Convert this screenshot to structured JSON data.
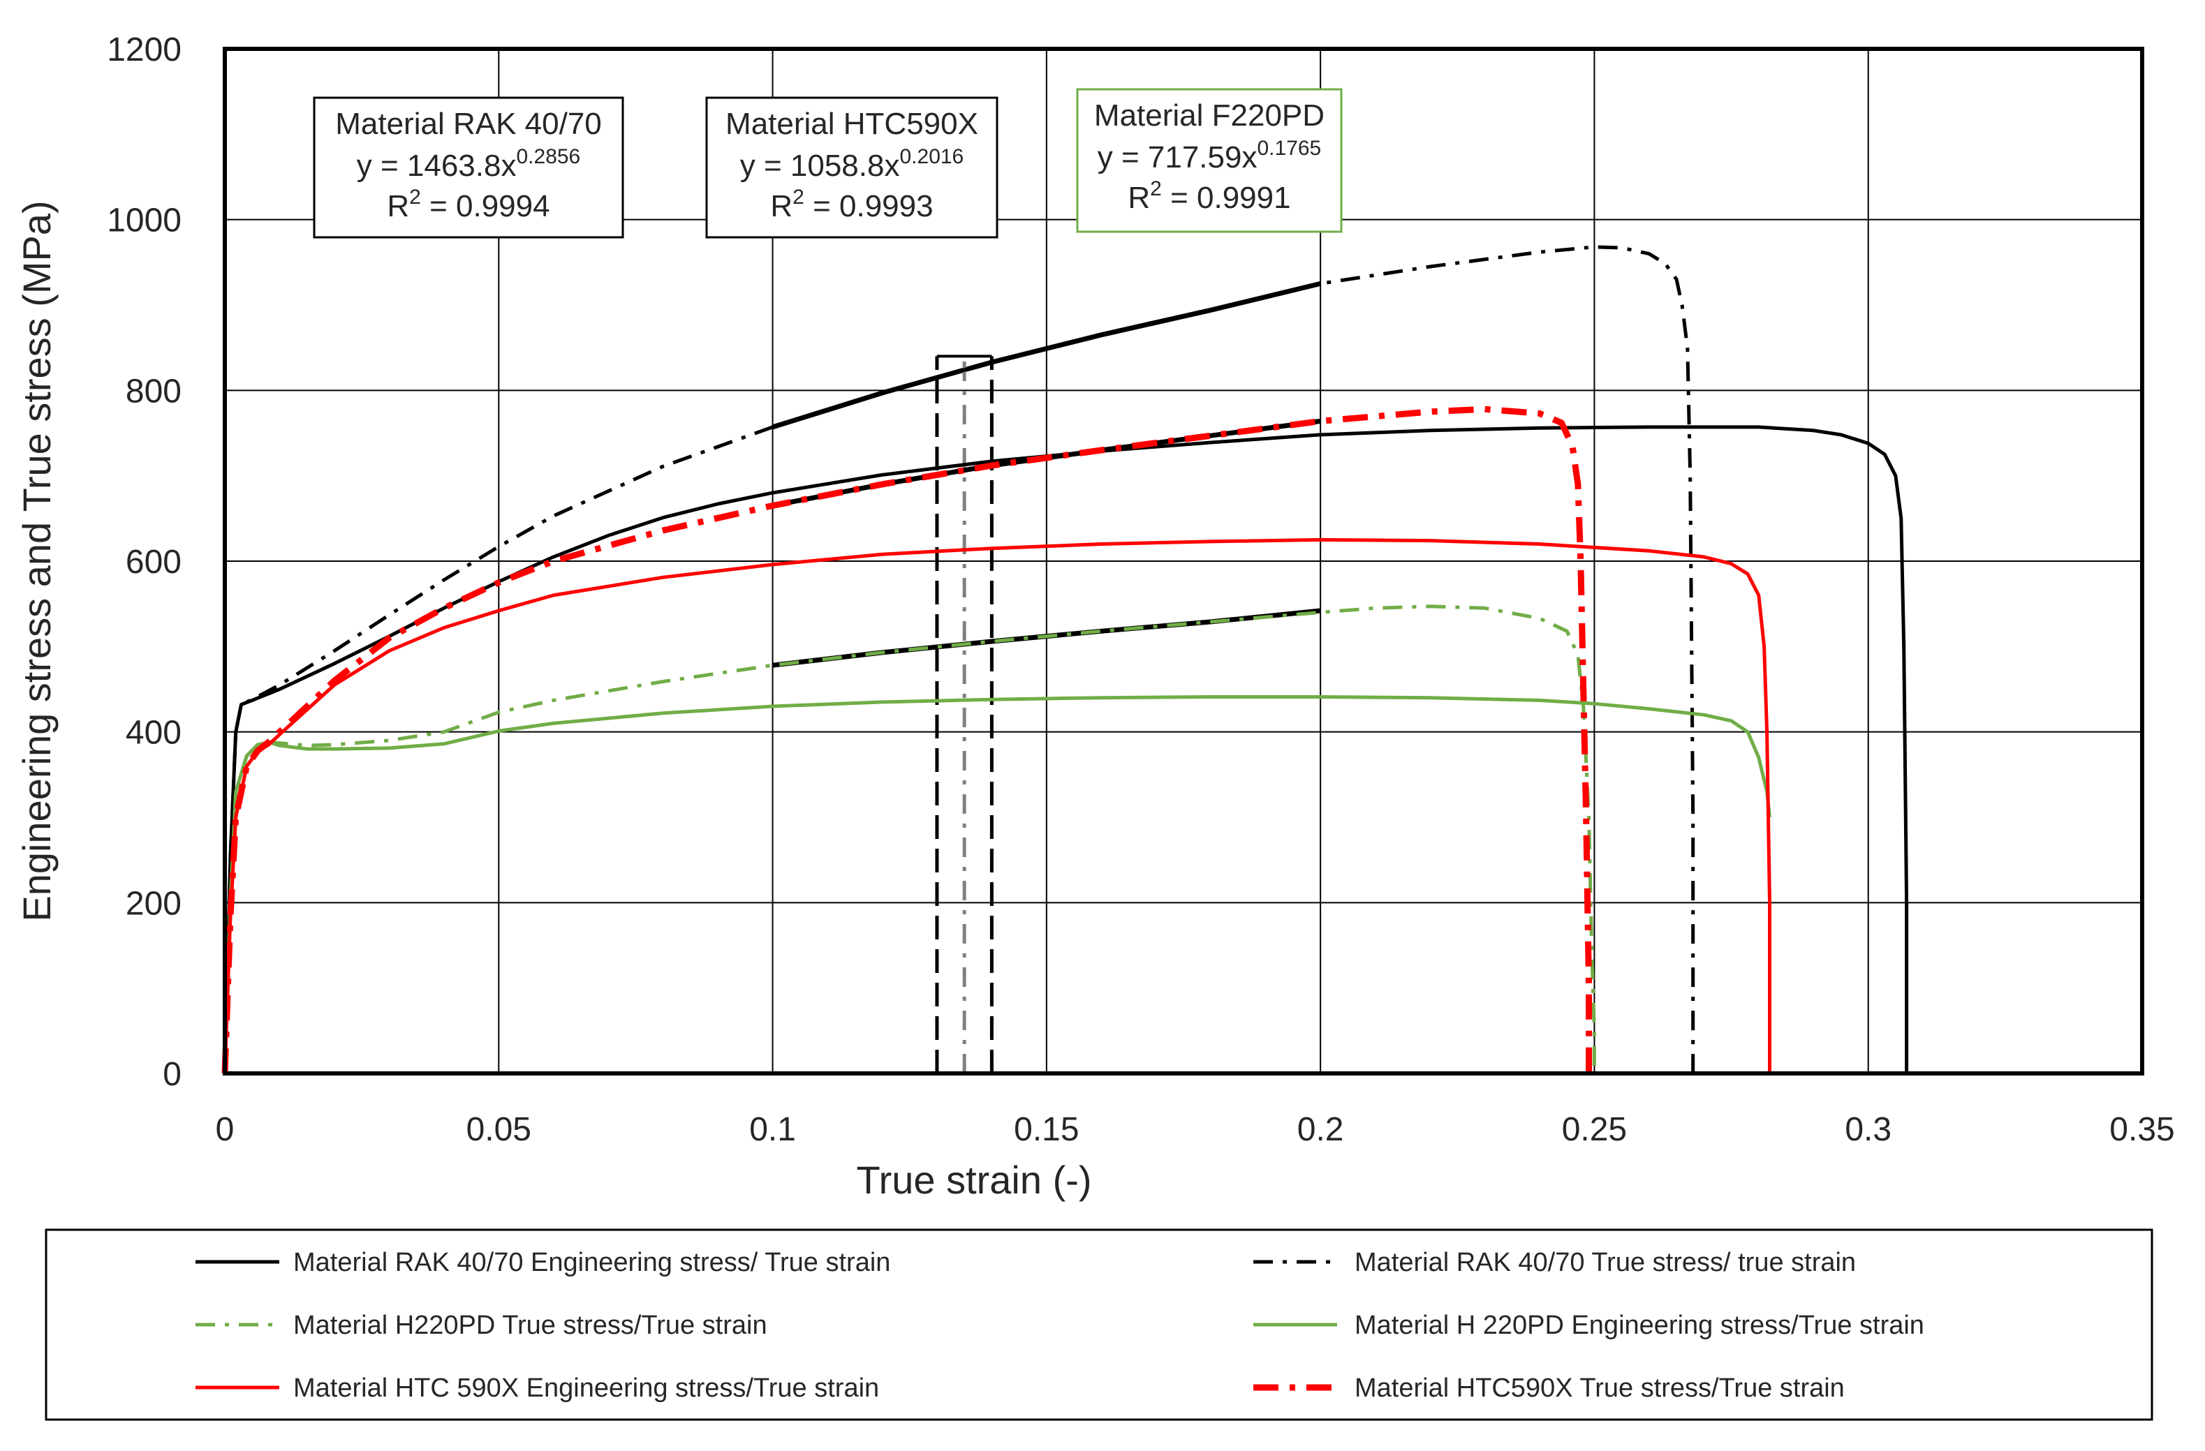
{
  "chart_data": {
    "type": "line",
    "title": "",
    "xlabel": "True strain (-)",
    "ylabel": "Engineering stress and True stress (MPa)",
    "xlim": [
      0,
      0.35
    ],
    "ylim": [
      0,
      1200
    ],
    "xticks": [
      0,
      0.05,
      0.1,
      0.15,
      0.2,
      0.25,
      0.3,
      0.35
    ],
    "yticks": [
      0,
      200,
      400,
      600,
      800,
      1000,
      1200
    ],
    "x_tick_labels": [
      "0",
      "0.05",
      "0.1",
      "0.15",
      "0.2",
      "0.25",
      "0.3",
      "0.35"
    ],
    "y_tick_labels": [
      "0",
      "200",
      "400",
      "600",
      "800",
      "1000",
      "1200"
    ],
    "grid": true,
    "legend_position": "bottom",
    "colors": {
      "black": "#000000",
      "green": "#70ad47",
      "red": "#ff0000",
      "gray": "#808080"
    },
    "annotations": [
      {
        "id": "rak",
        "lines": [
          "Material RAK 40/70",
          "y = 1463.8x^0.2856",
          "R^2 = 0.9994"
        ],
        "title": "Material RAK 40/70",
        "eq_base": "y = 1463.8x",
        "eq_exp": "0.2856",
        "r2_prefix": "R",
        "r2_sup": "2",
        "r2_value": " = 0.9994",
        "border": "#000000"
      },
      {
        "id": "htc",
        "lines": [
          "Material HTC590X",
          "y = 1058.8x^0.2016",
          "R^2 = 0.9993"
        ],
        "title": "Material HTC590X",
        "eq_base": "y = 1058.8x",
        "eq_exp": "0.2016",
        "r2_prefix": "R",
        "r2_sup": "2",
        "r2_value": " = 0.9993",
        "border": "#000000"
      },
      {
        "id": "f220",
        "lines": [
          "Material F220PD",
          "y = 717.59x^0.1765",
          "R^2 = 0.9991"
        ],
        "title": "Material F220PD",
        "eq_base": "y = 717.59x",
        "eq_exp": "0.1765",
        "r2_prefix": "R",
        "r2_sup": "2",
        "r2_value": " = 0.9991",
        "border": "#70ad47"
      }
    ],
    "fits": [
      {
        "name": "RAK 40/70 power fit",
        "color": "#000000",
        "x": [
          0.1,
          0.12,
          0.14,
          0.16,
          0.18,
          0.2
        ],
        "y": [
          757,
          797,
          833,
          865,
          894,
          925
        ]
      },
      {
        "name": "HTC590X power fit",
        "color": "#000000",
        "x": [
          0.1,
          0.12,
          0.14,
          0.16,
          0.18,
          0.2
        ],
        "y": [
          665,
          690,
          712,
          730,
          747,
          764
        ]
      },
      {
        "name": "F220PD power fit",
        "color": "#000000",
        "x": [
          0.1,
          0.12,
          0.14,
          0.16,
          0.18,
          0.2
        ],
        "y": [
          478,
          493,
          506,
          518,
          529,
          542
        ]
      }
    ],
    "markers": [
      {
        "name": "strain-window-left",
        "x": 0.13,
        "y": [
          0,
          840
        ],
        "color": "#000000",
        "dash": "long"
      },
      {
        "name": "strain-window-right",
        "x": 0.14,
        "y": [
          0,
          840
        ],
        "color": "#000000",
        "dash": "long"
      },
      {
        "name": "strain-window-center",
        "x": 0.135,
        "y": [
          0,
          840
        ],
        "color": "#808080",
        "dash": "dashdot"
      }
    ],
    "series": [
      {
        "name": "Material RAK 40/70 Engineering stress/ True strain",
        "legend_label": "Material RAK 40/70 Engineering stress/ True strain",
        "color": "#000000",
        "dash": "solid",
        "width": 5,
        "x": [
          0,
          0.001,
          0.002,
          0.003,
          0.005,
          0.01,
          0.02,
          0.03,
          0.04,
          0.05,
          0.06,
          0.07,
          0.08,
          0.09,
          0.1,
          0.12,
          0.14,
          0.16,
          0.18,
          0.2,
          0.22,
          0.24,
          0.26,
          0.28,
          0.29,
          0.295,
          0.3,
          0.303,
          0.305,
          0.306,
          0.3065,
          0.307,
          0.307
        ],
        "y": [
          0,
          250,
          400,
          432,
          437,
          450,
          480,
          512,
          545,
          576,
          605,
          630,
          651,
          667,
          680,
          701,
          717,
          729,
          739,
          748,
          753,
          756,
          757,
          757,
          753,
          748,
          738,
          725,
          700,
          650,
          500,
          200,
          0
        ]
      },
      {
        "name": "Material RAK 40/70 True stress/ true strain",
        "legend_label": "Material RAK 40/70 True stress/ true strain",
        "color": "#000000",
        "dash": "dashdot",
        "width": 5,
        "x": [
          0,
          0.001,
          0.002,
          0.003,
          0.005,
          0.01,
          0.02,
          0.03,
          0.04,
          0.05,
          0.06,
          0.08,
          0.1,
          0.12,
          0.14,
          0.16,
          0.18,
          0.2,
          0.22,
          0.24,
          0.25,
          0.255,
          0.26,
          0.263,
          0.265,
          0.266,
          0.267,
          0.2675,
          0.268,
          0.268
        ],
        "y": [
          0,
          250,
          400,
          432,
          438,
          455,
          495,
          537,
          578,
          617,
          653,
          711,
          757,
          797,
          833,
          865,
          894,
          925,
          945,
          962,
          968,
          967,
          960,
          948,
          930,
          900,
          850,
          700,
          300,
          0
        ]
      },
      {
        "name": "Material H220PD True stress/True strain",
        "legend_label": "Material H220PD True stress/True strain",
        "color": "#70ad47",
        "dash": "dashdot",
        "width": 5,
        "x": [
          0,
          0.001,
          0.002,
          0.004,
          0.006,
          0.008,
          0.01,
          0.015,
          0.02,
          0.03,
          0.04,
          0.05,
          0.06,
          0.08,
          0.1,
          0.12,
          0.14,
          0.16,
          0.18,
          0.2,
          0.21,
          0.22,
          0.23,
          0.24,
          0.245,
          0.247,
          0.248,
          0.249,
          0.2495,
          0.25,
          0.25
        ],
        "y": [
          0,
          200,
          330,
          372,
          385,
          388,
          387,
          384,
          385,
          390,
          400,
          423,
          437,
          459,
          478,
          493,
          506,
          518,
          529,
          540,
          545,
          547,
          545,
          533,
          518,
          490,
          430,
          300,
          150,
          50,
          0
        ]
      },
      {
        "name": "Material H 220PD Engineering stress/True strain",
        "legend_label": "Material H 220PD Engineering stress/True strain",
        "color": "#70ad47",
        "dash": "solid",
        "width": 5,
        "x": [
          0,
          0.001,
          0.002,
          0.004,
          0.006,
          0.008,
          0.01,
          0.015,
          0.02,
          0.03,
          0.04,
          0.05,
          0.06,
          0.08,
          0.1,
          0.12,
          0.14,
          0.16,
          0.18,
          0.2,
          0.22,
          0.24,
          0.25,
          0.26,
          0.27,
          0.275,
          0.278,
          0.28,
          0.2815,
          0.282
        ],
        "y": [
          0,
          200,
          330,
          372,
          385,
          388,
          384,
          380,
          380,
          381,
          386,
          401,
          410,
          422,
          430,
          435,
          438,
          440,
          441,
          441,
          440,
          437,
          433,
          427,
          420,
          413,
          400,
          370,
          330,
          300
        ]
      },
      {
        "name": "Material HTC 590X Engineering stress/True strain",
        "legend_label": "Material HTC 590X Engineering stress/True strain",
        "color": "#ff0000",
        "dash": "solid",
        "width": 5,
        "x": [
          0,
          0.001,
          0.002,
          0.004,
          0.006,
          0.008,
          0.01,
          0.02,
          0.03,
          0.04,
          0.05,
          0.06,
          0.08,
          0.1,
          0.12,
          0.14,
          0.16,
          0.18,
          0.2,
          0.22,
          0.24,
          0.26,
          0.27,
          0.275,
          0.278,
          0.28,
          0.281,
          0.2815,
          0.282,
          0.282
        ],
        "y": [
          0,
          180,
          300,
          360,
          377,
          385,
          397,
          455,
          495,
          522,
          542,
          560,
          581,
          596,
          608,
          615,
          620,
          623,
          625,
          624,
          620,
          612,
          605,
          597,
          585,
          560,
          500,
          400,
          200,
          0
        ]
      },
      {
        "name": "Material HTC590X True stress/True strain",
        "legend_label": "Material HTC590X True stress/True strain",
        "color": "#ff0000",
        "dash": "dashdot",
        "width": 9,
        "x": [
          0,
          0.001,
          0.002,
          0.004,
          0.006,
          0.008,
          0.01,
          0.02,
          0.03,
          0.04,
          0.05,
          0.06,
          0.08,
          0.1,
          0.12,
          0.14,
          0.16,
          0.18,
          0.2,
          0.22,
          0.23,
          0.24,
          0.244,
          0.246,
          0.247,
          0.2475,
          0.248,
          0.2485,
          0.249,
          0.249
        ],
        "y": [
          0,
          180,
          300,
          360,
          378,
          388,
          400,
          460,
          510,
          545,
          575,
          600,
          636,
          665,
          690,
          712,
          730,
          747,
          764,
          775,
          778,
          773,
          762,
          735,
          690,
          600,
          450,
          300,
          100,
          0
        ]
      }
    ]
  }
}
